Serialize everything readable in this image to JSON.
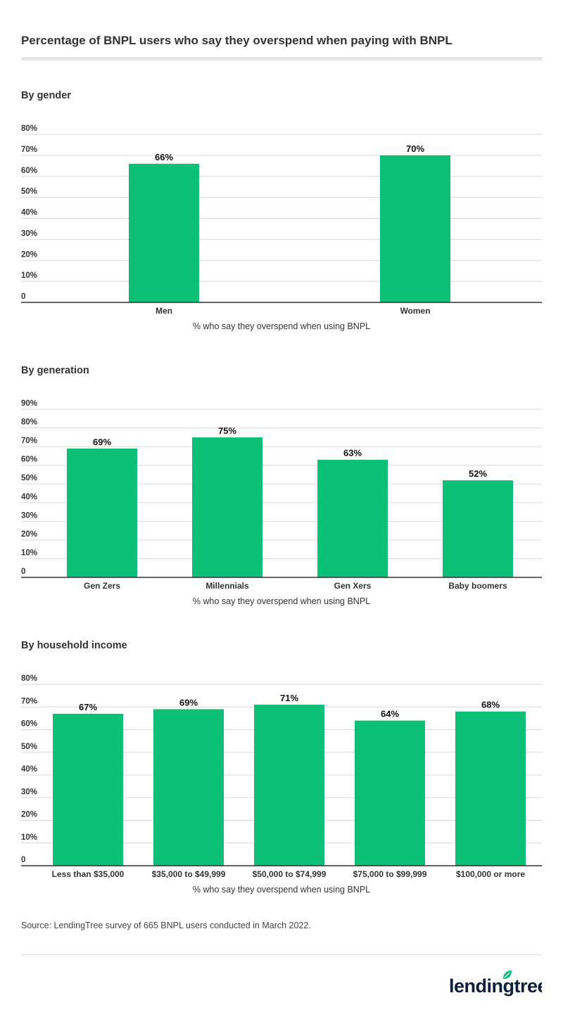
{
  "title": "Percentage of BNPL users who say they overspend when paying with BNPL",
  "source": "Source: LendingTree survey of 665 BNPL users conducted in March 2022.",
  "logo_text": "lendingtree",
  "colors": {
    "bar": "#0cc177",
    "grid": "#d9d9d9",
    "axis": "#333333",
    "text": "#333333"
  },
  "chart_data": [
    {
      "type": "bar",
      "title": "By gender",
      "xlabel": "% who say they overspend when using BNPL",
      "categories": [
        "Men",
        "Women"
      ],
      "values": [
        66,
        70
      ],
      "data_labels": [
        "66%",
        "70%"
      ],
      "ylim": [
        0,
        80
      ],
      "yticks": [
        "0",
        "10%",
        "20%",
        "30%",
        "40%",
        "50%",
        "60%",
        "70%",
        "80%"
      ],
      "grid": true
    },
    {
      "type": "bar",
      "title": "By generation",
      "xlabel": "% who say they overspend when using BNPL",
      "categories": [
        "Gen Zers",
        "Millennials",
        "Gen Xers",
        "Baby boomers"
      ],
      "values": [
        69,
        75,
        63,
        52
      ],
      "data_labels": [
        "69%",
        "75%",
        "63%",
        "52%"
      ],
      "ylim": [
        0,
        90
      ],
      "yticks": [
        "0",
        "10%",
        "20%",
        "30%",
        "40%",
        "50%",
        "60%",
        "70%",
        "80%",
        "90%"
      ],
      "grid": true
    },
    {
      "type": "bar",
      "title": "By household income",
      "xlabel": "% who say they overspend when using BNPL",
      "categories": [
        "Less than $35,000",
        "$35,000 to $49,999",
        "$50,000 to $74,999",
        "$75,000 to $99,999",
        "$100,000 or more"
      ],
      "values": [
        67,
        69,
        71,
        64,
        68
      ],
      "data_labels": [
        "67%",
        "69%",
        "71%",
        "64%",
        "68%"
      ],
      "ylim": [
        0,
        80
      ],
      "yticks": [
        "0",
        "10%",
        "20%",
        "30%",
        "40%",
        "50%",
        "60%",
        "70%",
        "80%"
      ],
      "grid": true
    }
  ]
}
